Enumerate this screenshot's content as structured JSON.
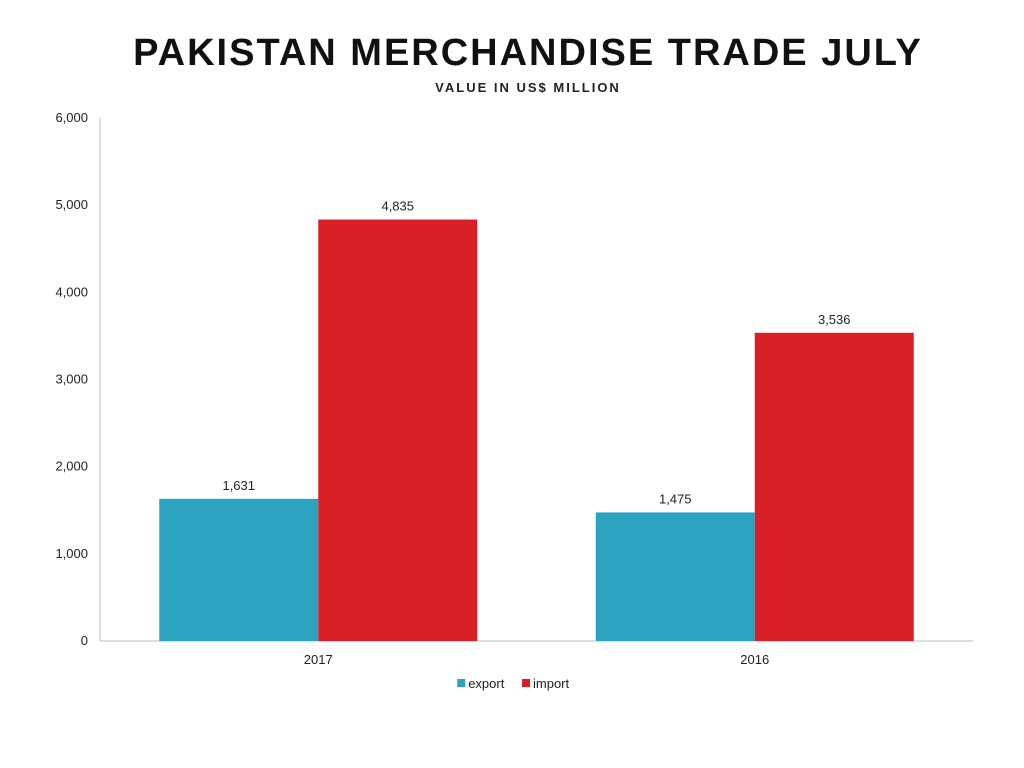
{
  "title": "PAKISTAN MERCHANDISE TRADE JULY",
  "subtitle": "VALUE IN US$ MILLION",
  "chart_data": {
    "type": "bar",
    "categories": [
      "2017",
      "2016"
    ],
    "series": [
      {
        "name": "export",
        "values": [
          1631,
          1475
        ],
        "labels": [
          "1,631",
          "1,475"
        ],
        "color": "#2ca3c0"
      },
      {
        "name": "import",
        "values": [
          4835,
          3536
        ],
        "labels": [
          "4,835",
          "3,536"
        ],
        "color": "#d91f26"
      }
    ],
    "ylim": [
      0,
      6000
    ],
    "yticks": [
      0,
      1000,
      2000,
      3000,
      4000,
      5000,
      6000
    ],
    "ytick_labels": [
      "0",
      "1,000",
      "2,000",
      "3,000",
      "4,000",
      "5,000",
      "6,000"
    ],
    "grid": false,
    "legend_position": "bottom"
  }
}
